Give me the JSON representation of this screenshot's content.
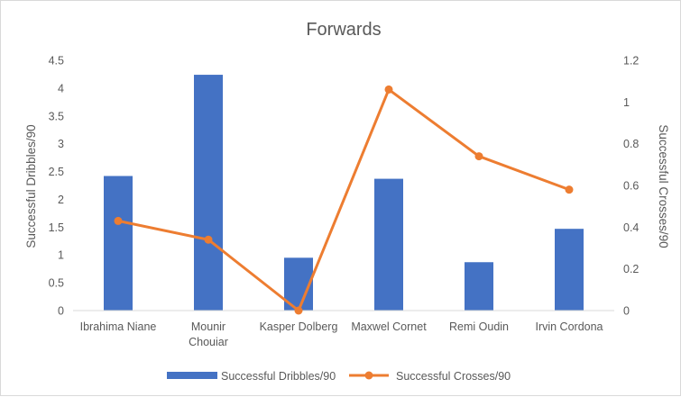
{
  "chart_data": {
    "type": "bar",
    "combo": "bar+line",
    "title": "Forwards",
    "categories": [
      [
        "Ibrahima Niane"
      ],
      [
        "Mounir",
        "Chouiar"
      ],
      [
        "Kasper Dolberg"
      ],
      [
        "Maxwel Cornet"
      ],
      [
        "Remi Oudin"
      ],
      [
        "Irvin Cordona"
      ]
    ],
    "series": [
      {
        "name": "Successful Dribbles/90",
        "type": "bar",
        "axis": "left",
        "color": "#4472C4",
        "values": [
          2.42,
          4.24,
          0.95,
          2.37,
          0.87,
          1.47
        ]
      },
      {
        "name": "Successful Crosses/90",
        "type": "line",
        "axis": "right",
        "color": "#ED7D31",
        "values": [
          0.43,
          0.34,
          0.0,
          1.06,
          0.74,
          0.58
        ]
      }
    ],
    "ylabel": "Successful Dribbles/90",
    "y2label": "Successful Crosses/90",
    "ylim": [
      0,
      4.5
    ],
    "y2lim": [
      0,
      1.2
    ],
    "yticks": [
      "0",
      "0.5",
      "1",
      "1.5",
      "2",
      "2.5",
      "3",
      "3.5",
      "4",
      "4.5"
    ],
    "y2ticks": [
      "0",
      "0.2",
      "0.4",
      "0.6",
      "0.8",
      "1",
      "1.2"
    ],
    "grid": false,
    "legend": "bottom"
  }
}
